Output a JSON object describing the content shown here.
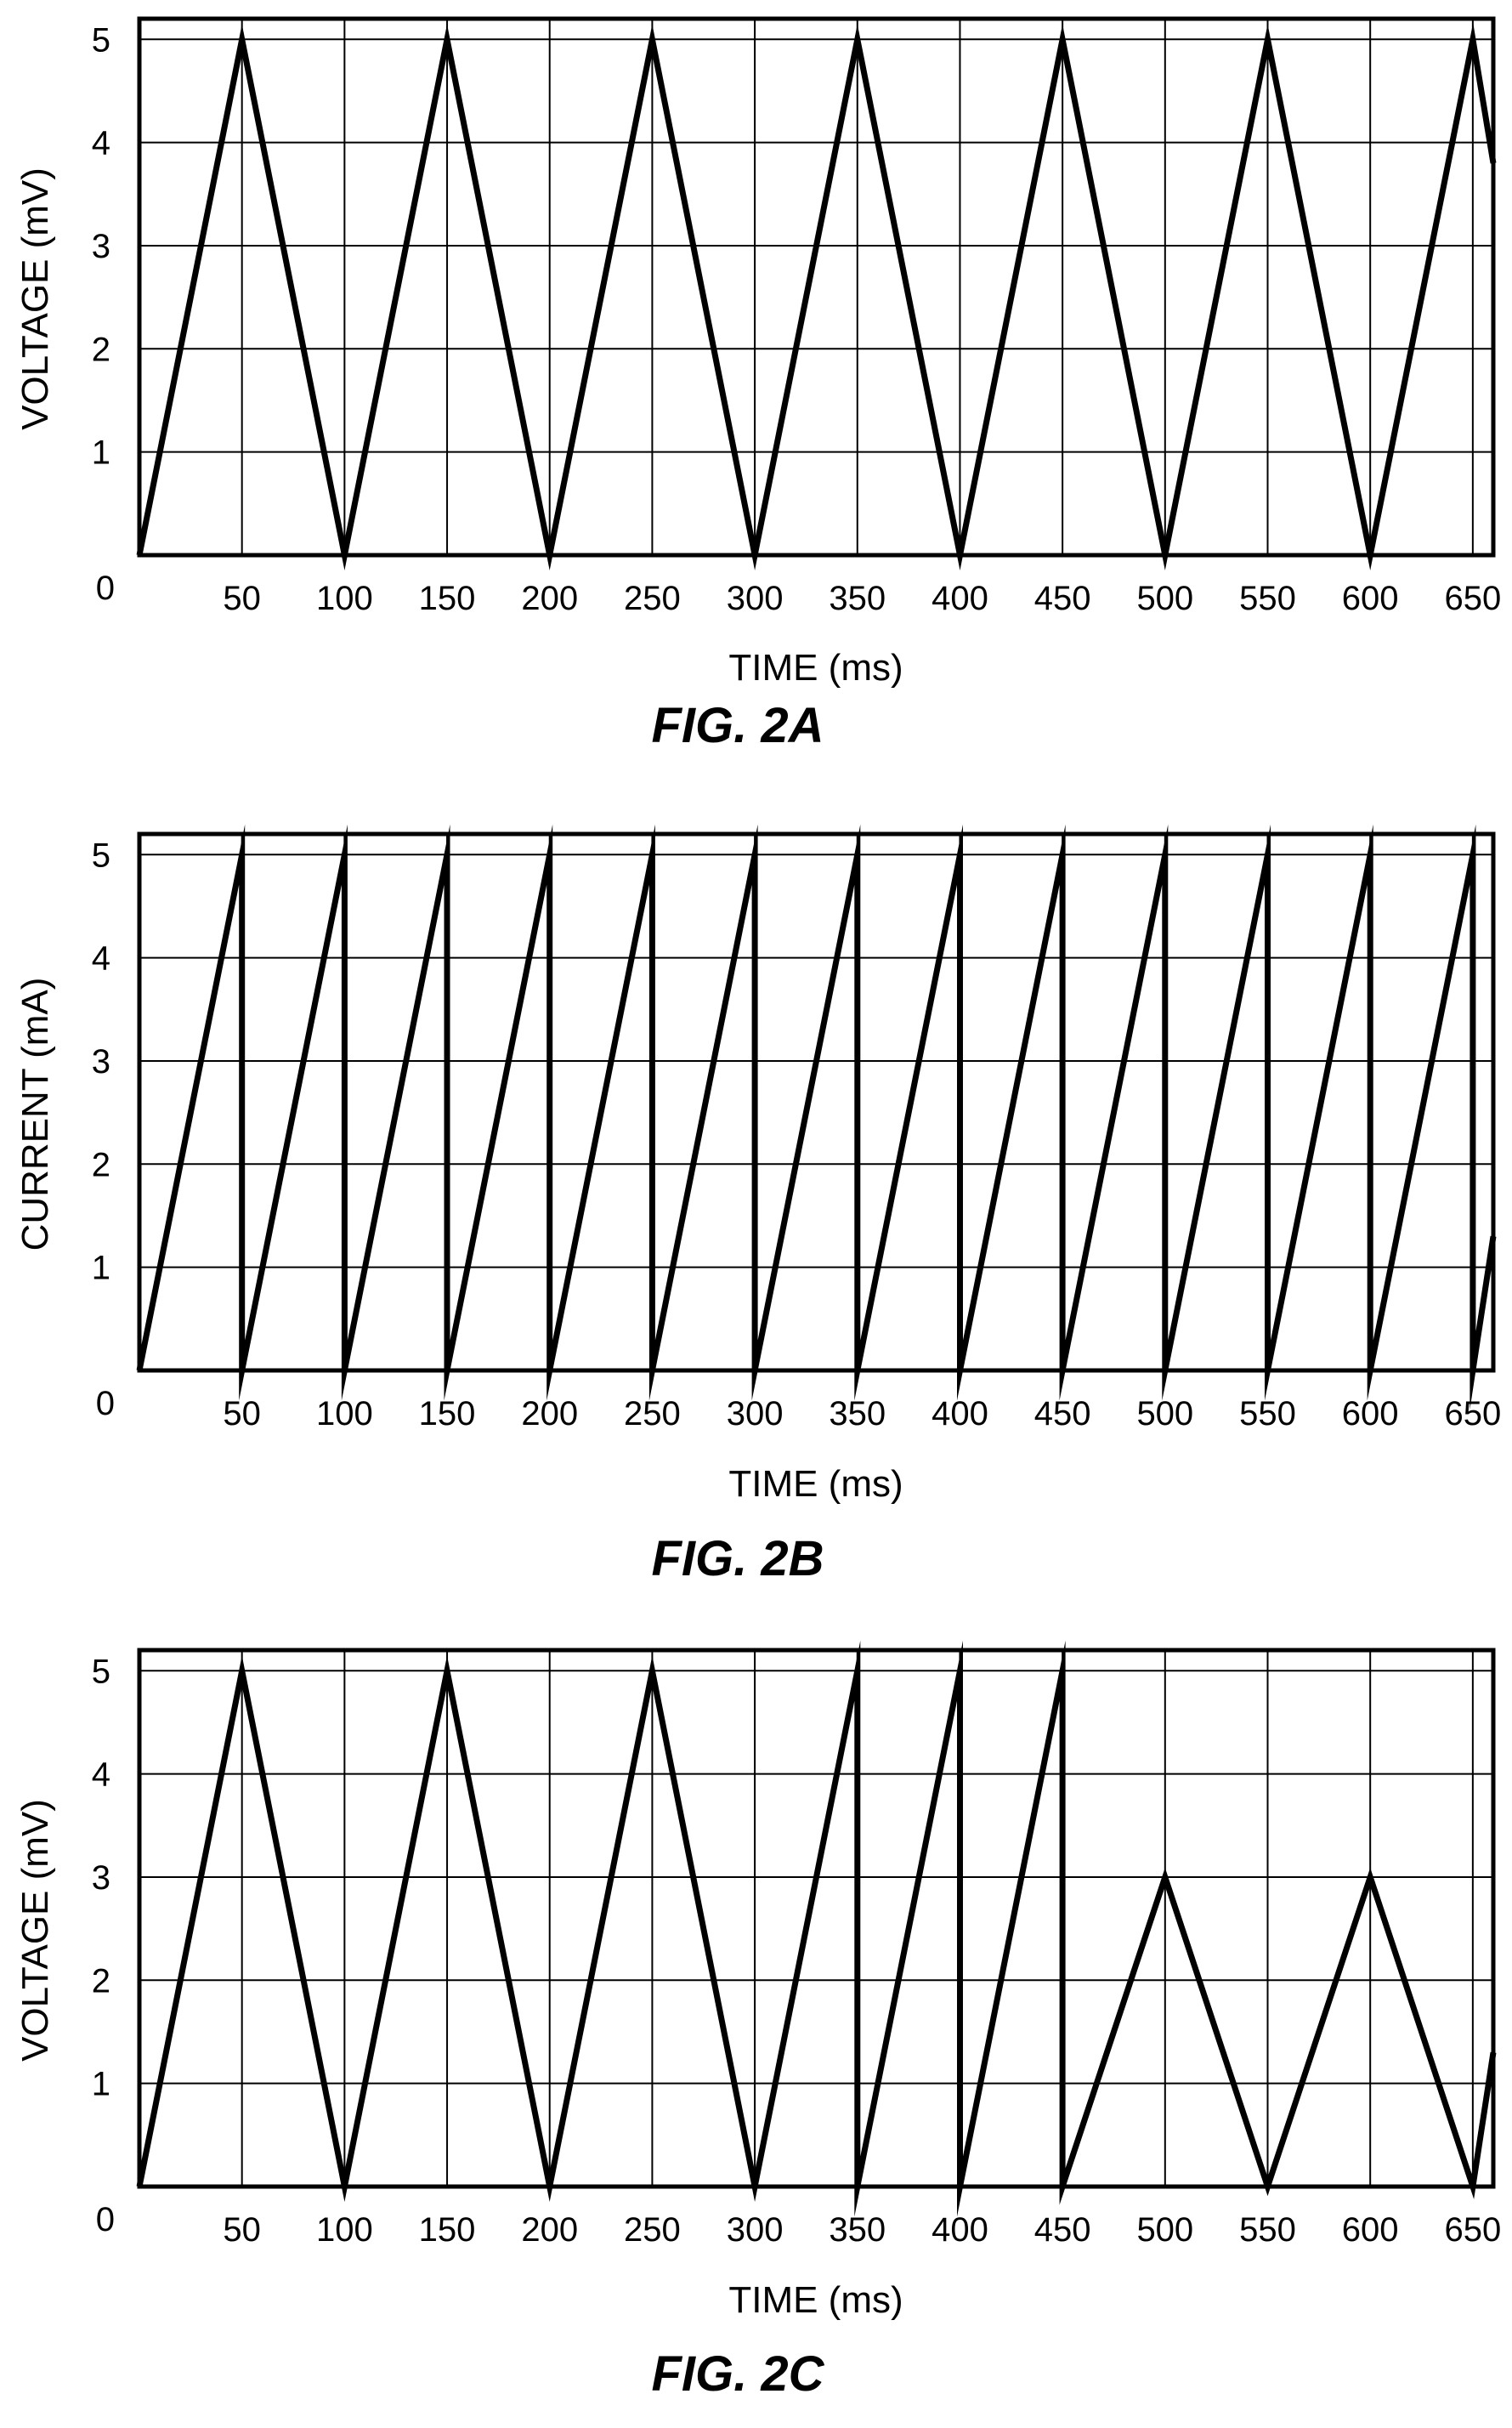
{
  "chart_data": [
    {
      "type": "line",
      "caption": "FIG. 2A",
      "xlabel": "TIME (ms)",
      "ylabel": "VOLTAGE (mV)",
      "xlim": [
        0,
        660
      ],
      "ylim": [
        0,
        5.2
      ],
      "grid": true,
      "x_ticks": [
        50,
        100,
        150,
        200,
        250,
        300,
        350,
        400,
        450,
        500,
        550,
        600,
        650
      ],
      "y_ticks": [
        1,
        2,
        3,
        4,
        5
      ],
      "origin_label": "0",
      "series": [
        {
          "x": [
            0,
            50,
            100,
            150,
            200,
            250,
            300,
            350,
            400,
            450,
            500,
            550,
            600,
            650,
            660
          ],
          "y": [
            0,
            5,
            0,
            5,
            0,
            5,
            0,
            5,
            0,
            5,
            0,
            5,
            0,
            5,
            3.8
          ]
        }
      ]
    },
    {
      "type": "line",
      "caption": "FIG. 2B",
      "xlabel": "TIME (ms)",
      "ylabel": "CURRENT (mA)",
      "xlim": [
        0,
        660
      ],
      "ylim": [
        0,
        5.2
      ],
      "grid": true,
      "x_ticks": [
        50,
        100,
        150,
        200,
        250,
        300,
        350,
        400,
        450,
        500,
        550,
        600,
        650
      ],
      "y_ticks": [
        1,
        2,
        3,
        4,
        5
      ],
      "origin_label": "0",
      "series": [
        {
          "x": [
            0,
            50,
            50,
            100,
            100,
            150,
            150,
            200,
            200,
            250,
            250,
            300,
            300,
            350,
            350,
            400,
            400,
            450,
            450,
            500,
            500,
            550,
            550,
            600,
            600,
            650,
            650,
            660
          ],
          "y": [
            0,
            5,
            0,
            5,
            0,
            5,
            0,
            5,
            0,
            5,
            0,
            5,
            0,
            5,
            0,
            5,
            0,
            5,
            0,
            5,
            0,
            5,
            0,
            5,
            0,
            5,
            0,
            1.3
          ]
        }
      ]
    },
    {
      "type": "line",
      "caption": "FIG. 2C",
      "xlabel": "TIME (ms)",
      "ylabel": "VOLTAGE (mV)",
      "xlim": [
        0,
        660
      ],
      "ylim": [
        0,
        5.2
      ],
      "grid": true,
      "x_ticks": [
        50,
        100,
        150,
        200,
        250,
        300,
        350,
        400,
        450,
        500,
        550,
        600,
        650
      ],
      "y_ticks": [
        1,
        2,
        3,
        4,
        5
      ],
      "origin_label": "0",
      "series": [
        {
          "x": [
            0,
            50,
            100,
            150,
            200,
            250,
            300,
            350,
            350,
            400,
            400,
            450,
            450,
            500,
            550,
            600,
            650,
            660
          ],
          "y": [
            0,
            5,
            0,
            5,
            0,
            5,
            0,
            5,
            0,
            5,
            0,
            5,
            0,
            3,
            0,
            3,
            0,
            1.3
          ]
        }
      ]
    }
  ]
}
